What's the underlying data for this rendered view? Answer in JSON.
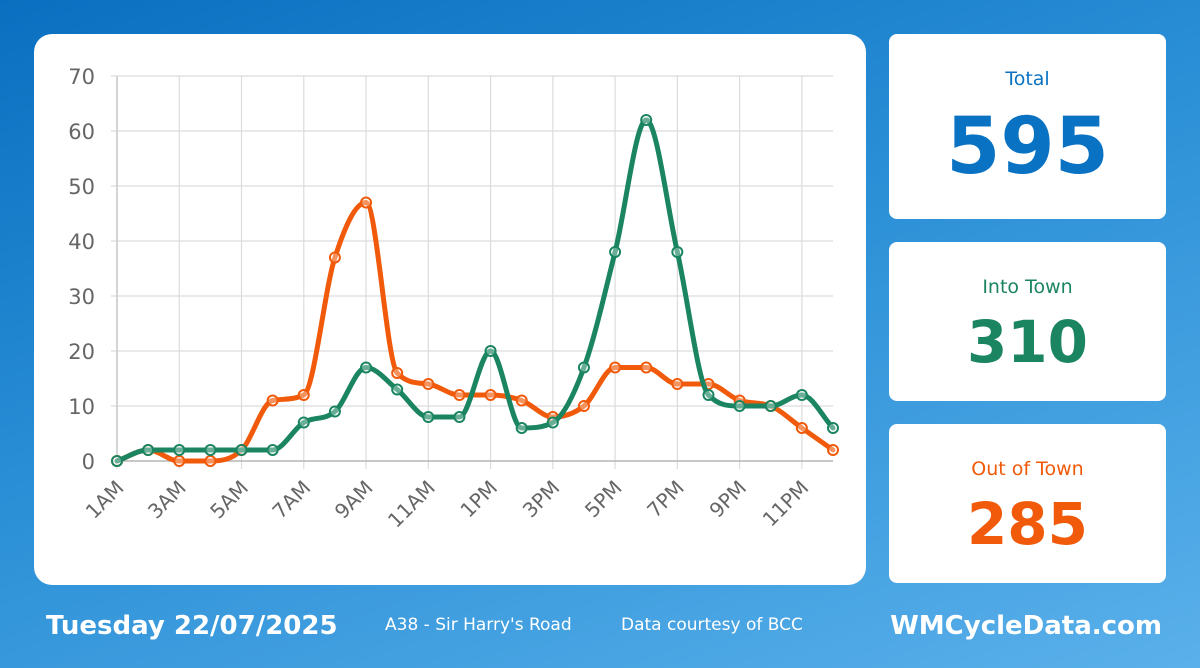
{
  "stats": {
    "total": {
      "label": "Total",
      "value": "595"
    },
    "into_town": {
      "label": "Into Town",
      "value": "310"
    },
    "out_of_town": {
      "label": "Out of Town",
      "value": "285"
    }
  },
  "footer": {
    "date": "Tuesday 22/07/2025",
    "location": "A38 - Sir Harry's Road",
    "credit": "Data courtesy of BCC",
    "site": "WMCycleData.com"
  },
  "colors": {
    "into_town": "#1a8560",
    "out_of_town": "#f05a0a",
    "grid": "#dcdcdc",
    "tick_text": "#666666"
  },
  "chart_data": {
    "type": "line",
    "title": "",
    "xlabel": "",
    "ylabel": "",
    "ylim": [
      0,
      70
    ],
    "yticks": [
      0,
      10,
      20,
      30,
      40,
      50,
      60,
      70
    ],
    "grid": true,
    "x": [
      "1AM",
      "2AM",
      "3AM",
      "4AM",
      "5AM",
      "6AM",
      "7AM",
      "8AM",
      "9AM",
      "10AM",
      "11AM",
      "12PM",
      "1PM",
      "2PM",
      "3PM",
      "4PM",
      "5PM",
      "6PM",
      "7PM",
      "8PM",
      "9PM",
      "10PM",
      "11PM",
      "12AM"
    ],
    "xtick_labels": [
      "1AM",
      "3AM",
      "5AM",
      "7AM",
      "9AM",
      "11AM",
      "1PM",
      "3PM",
      "5PM",
      "7PM",
      "9PM",
      "11PM"
    ],
    "series": [
      {
        "key": "out_of_town",
        "values": [
          0,
          2,
          0,
          0,
          2,
          11,
          12,
          37,
          47,
          16,
          14,
          12,
          12,
          11,
          8,
          10,
          17,
          17,
          14,
          14,
          11,
          10,
          6,
          2
        ]
      },
      {
        "key": "into_town",
        "values": [
          0,
          2,
          2,
          2,
          2,
          2,
          7,
          9,
          17,
          13,
          8,
          8,
          20,
          6,
          7,
          17,
          38,
          62,
          38,
          12,
          10,
          10,
          12,
          6
        ]
      }
    ]
  }
}
